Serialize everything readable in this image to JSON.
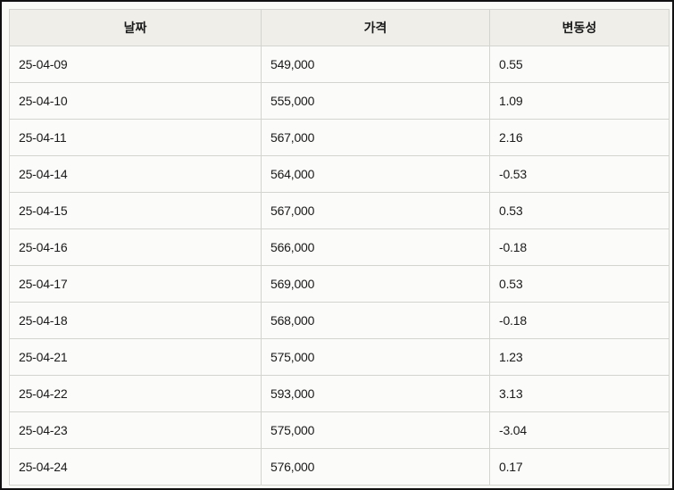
{
  "table": {
    "headers": [
      "날짜",
      "가격",
      "변동성"
    ],
    "rows": [
      [
        "25-04-09",
        "549,000",
        "0.55"
      ],
      [
        "25-04-10",
        "555,000",
        "1.09"
      ],
      [
        "25-04-11",
        "567,000",
        "2.16"
      ],
      [
        "25-04-14",
        "564,000",
        "-0.53"
      ],
      [
        "25-04-15",
        "567,000",
        "0.53"
      ],
      [
        "25-04-16",
        "566,000",
        "-0.18"
      ],
      [
        "25-04-17",
        "569,000",
        "0.53"
      ],
      [
        "25-04-18",
        "568,000",
        "-0.18"
      ],
      [
        "25-04-21",
        "575,000",
        "1.23"
      ],
      [
        "25-04-22",
        "593,000",
        "3.13"
      ],
      [
        "25-04-23",
        "575,000",
        "-3.04"
      ],
      [
        "25-04-24",
        "576,000",
        "0.17"
      ]
    ]
  }
}
